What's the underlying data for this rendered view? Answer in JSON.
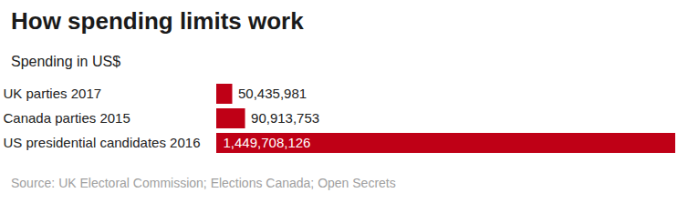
{
  "chart_data": {
    "type": "bar",
    "orientation": "horizontal",
    "title": "How spending limits work",
    "subtitle": "Spending in US$",
    "caption": "Source: UK Electoral Commission; Elections Canada; Open Secrets",
    "categories": [
      "UK parties 2017",
      "Canada parties 2015",
      "US presidential candidates 2016"
    ],
    "values": [
      50435981,
      90913753,
      1449708126
    ],
    "value_labels": [
      "50,435,981",
      "90,913,753",
      "1,449,708,126"
    ],
    "data_labels": true,
    "color": "#bf0016",
    "xlim": [
      0,
      1449708126
    ],
    "xticks": [],
    "tick_labels": "y",
    "grid": false
  }
}
